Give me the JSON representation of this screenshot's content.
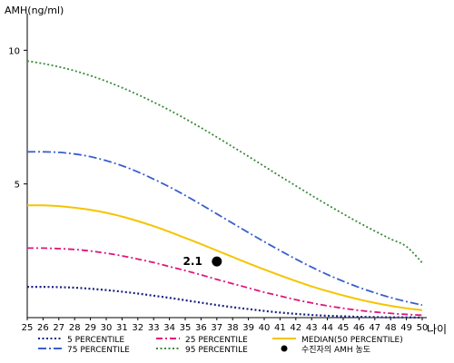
{
  "chart_data": {
    "type": "line",
    "title": "",
    "ylabel": "AMH(ng/ml)",
    "xlabel": "나이",
    "ylim": [
      0,
      11.2
    ],
    "xlim": [
      25,
      50
    ],
    "x": [
      25,
      26,
      27,
      28,
      29,
      30,
      31,
      32,
      33,
      34,
      35,
      36,
      37,
      38,
      39,
      40,
      41,
      42,
      43,
      44,
      45,
      46,
      47,
      48,
      49,
      50
    ],
    "y_ticks": [
      5,
      10
    ],
    "grid": false,
    "legend_position": "bottom",
    "series": [
      {
        "name": "5 PERCENTILE",
        "color": "#1a237e",
        "dash": "2 2.5",
        "width": 2.2,
        "values": [
          1.15,
          1.15,
          1.14,
          1.12,
          1.08,
          1.03,
          0.97,
          0.9,
          0.82,
          0.74,
          0.65,
          0.56,
          0.47,
          0.39,
          0.32,
          0.25,
          0.19,
          0.14,
          0.1,
          0.07,
          0.05,
          0.03,
          0.02,
          0.01,
          0.01,
          0.0
        ]
      },
      {
        "name": "25 PERCENTILE",
        "color": "#e0157a",
        "dash": "7 3 2 3",
        "width": 1.8,
        "values": [
          2.6,
          2.6,
          2.58,
          2.55,
          2.49,
          2.41,
          2.31,
          2.19,
          2.06,
          1.91,
          1.76,
          1.6,
          1.43,
          1.27,
          1.11,
          0.95,
          0.81,
          0.67,
          0.55,
          0.44,
          0.35,
          0.27,
          0.21,
          0.16,
          0.12,
          0.09
        ]
      },
      {
        "name": "MEDIAN(50 PERCENTILE)",
        "color": "#f5c400",
        "dash": "",
        "width": 2,
        "values": [
          4.2,
          4.2,
          4.17,
          4.11,
          4.03,
          3.92,
          3.78,
          3.61,
          3.42,
          3.21,
          2.98,
          2.75,
          2.51,
          2.27,
          2.03,
          1.8,
          1.58,
          1.37,
          1.17,
          0.99,
          0.83,
          0.68,
          0.55,
          0.44,
          0.35,
          0.28
        ]
      },
      {
        "name": "75 PERCENTILE",
        "color": "#3a5fcc",
        "dash": "9 3 2 3",
        "width": 1.8,
        "values": [
          6.2,
          6.2,
          6.18,
          6.12,
          6.02,
          5.87,
          5.68,
          5.45,
          5.18,
          4.89,
          4.57,
          4.23,
          3.88,
          3.53,
          3.18,
          2.84,
          2.51,
          2.19,
          1.89,
          1.61,
          1.36,
          1.13,
          0.93,
          0.75,
          0.6,
          0.47
        ]
      },
      {
        "name": "95 PERCENTILE",
        "color": "#3a8a3a",
        "dash": "2 2.5",
        "width": 1.8,
        "values": [
          9.6,
          9.5,
          9.38,
          9.23,
          9.05,
          8.84,
          8.6,
          8.34,
          8.06,
          7.76,
          7.44,
          7.1,
          6.75,
          6.39,
          6.03,
          5.66,
          5.29,
          4.93,
          4.57,
          4.22,
          3.88,
          3.55,
          3.24,
          2.94,
          2.66,
          2.05
        ]
      }
    ],
    "patient_point": {
      "label": "수진자의 AMH 농도",
      "x": 37,
      "y": 2.1,
      "annotation": "2.1",
      "color": "#000000"
    }
  }
}
